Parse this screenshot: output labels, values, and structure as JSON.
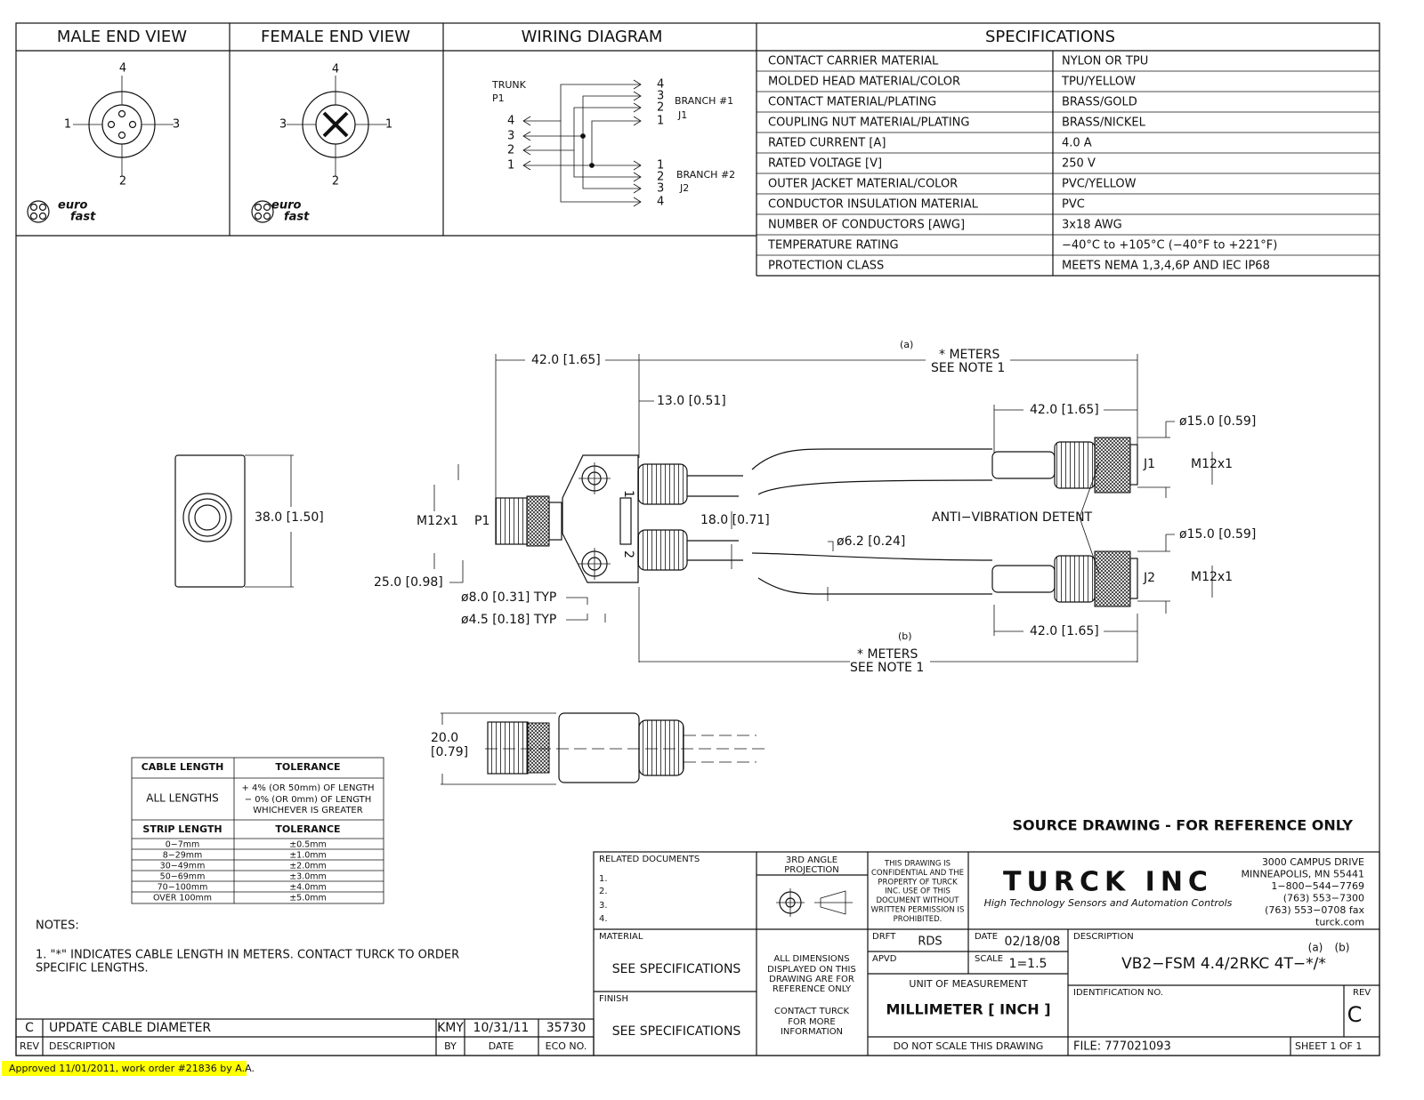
{
  "headers": {
    "male": "MALE END VIEW",
    "female": "FEMALE END VIEW",
    "wiring": "WIRING DIAGRAM",
    "specs": "SPECIFICATIONS"
  },
  "male_view": {
    "pins": [
      "4",
      "1",
      "3",
      "2"
    ],
    "logo": [
      "euro",
      "fast"
    ]
  },
  "female_view": {
    "pins": [
      "4",
      "3",
      "1",
      "2"
    ],
    "logo": [
      "euro",
      "fast"
    ]
  },
  "wiring": {
    "trunk": "TRUNK",
    "trunk_id": "P1",
    "trunk_pins": [
      "4",
      "3",
      "2",
      "1"
    ],
    "branch1": {
      "label": "BRANCH #1",
      "id": "J1",
      "pins": [
        "4",
        "3",
        "2",
        "1"
      ]
    },
    "branch2": {
      "label": "BRANCH #2",
      "id": "J2",
      "pins": [
        "1",
        "2",
        "3",
        "4"
      ]
    }
  },
  "specifications": [
    [
      "CONTACT CARRIER MATERIAL",
      "NYLON OR TPU"
    ],
    [
      "MOLDED HEAD MATERIAL/COLOR",
      "TPU/YELLOW"
    ],
    [
      "CONTACT MATERIAL/PLATING",
      "BRASS/GOLD"
    ],
    [
      "COUPLING NUT MATERIAL/PLATING",
      "BRASS/NICKEL"
    ],
    [
      "RATED CURRENT [A]",
      "4.0 A"
    ],
    [
      "RATED VOLTAGE [V]",
      "250 V"
    ],
    [
      "OUTER JACKET MATERIAL/COLOR",
      "PVC/YELLOW"
    ],
    [
      "CONDUCTOR INSULATION MATERIAL",
      "PVC"
    ],
    [
      "NUMBER OF CONDUCTORS [AWG]",
      "3x18 AWG"
    ],
    [
      "TEMPERATURE RATING",
      "−40°C to +105°C (−40°F to +221°F)"
    ],
    [
      "PROTECTION CLASS",
      "MEETS NEMA 1,3,4,6P AND IEC IP68"
    ]
  ],
  "drawing": {
    "labels": [
      "42.0 [1.65]",
      "(a)",
      "* METERS",
      "SEE NOTE 1",
      "13.0 [0.51]",
      "42.0 [1.65]",
      "ø15.0 [0.59]",
      "J1",
      "M12x1",
      "38.0 [1.50]",
      "M12x1",
      "P1",
      "18.0 [0.71]",
      "ANTI−VIBRATION DETENT",
      "ø15.0 [0.59]",
      "ø6.2 [0.24]",
      "J2",
      "M12x1",
      "25.0 [0.98]",
      "ø8.0 [0.31] TYP",
      "ø4.5 [0.18] TYP",
      "42.0 [1.65]",
      "(b)",
      "* METERS",
      "SEE NOTE 1",
      "20.0",
      "[0.79]",
      "1",
      "2"
    ]
  },
  "tolerance_table": {
    "header": [
      "CABLE LENGTH",
      "TOLERANCE"
    ],
    "all_lengths": "ALL LENGTHS",
    "all_tolerance": [
      "+ 4% (OR 50mm) OF LENGTH",
      "− 0% (OR 0mm) OF LENGTH",
      "WHICHEVER IS GREATER"
    ],
    "strip_header": [
      "STRIP LENGTH",
      "TOLERANCE"
    ],
    "strip_rows": [
      [
        "0−7mm",
        "±0.5mm"
      ],
      [
        "8−29mm",
        "±1.0mm"
      ],
      [
        "30−49mm",
        "±2.0mm"
      ],
      [
        "50−69mm",
        "±3.0mm"
      ],
      [
        "70−100mm",
        "±4.0mm"
      ],
      [
        "OVER 100mm",
        "±5.0mm"
      ]
    ]
  },
  "source_note": "SOURCE DRAWING - FOR REFERENCE ONLY",
  "notes": {
    "title": "NOTES:",
    "lines": [
      "1. \"*\" INDICATES CABLE LENGTH IN METERS. CONTACT TURCK TO ORDER",
      "SPECIFIC LENGTHS."
    ]
  },
  "revision": {
    "row": [
      "C",
      "UPDATE CABLE DIAMETER",
      "KMY",
      "10/31/11",
      "35730"
    ],
    "header": [
      "REV",
      "DESCRIPTION",
      "BY",
      "DATE",
      "ECO NO."
    ]
  },
  "title_block": {
    "related_documents": "RELATED DOCUMENTS",
    "related_items": [
      "1.",
      "2.",
      "3.",
      "4."
    ],
    "material_label": "MATERIAL",
    "material": "SEE SPECIFICATIONS",
    "finish_label": "FINISH",
    "finish": "SEE SPECIFICATIONS",
    "projection": [
      "3RD ANGLE",
      "PROJECTION"
    ],
    "dimensions_note": [
      "ALL DIMENSIONS",
      "DISPLAYED ON THIS",
      "DRAWING ARE FOR",
      "REFERENCE ONLY"
    ],
    "contact_note": [
      "CONTACT TURCK",
      "FOR MORE",
      "INFORMATION"
    ],
    "confidential": [
      "THIS DRAWING IS",
      "CONFIDENTIAL AND THE",
      "PROPERTY OF TURCK",
      "INC. USE OF THIS",
      "DOCUMENT WITHOUT",
      "WRITTEN PERMISSION IS",
      "PROHIBITED."
    ],
    "company": "TURCK INC",
    "tagline": "High Technology Sensors and Automation Controls",
    "address": [
      "3000 CAMPUS DRIVE",
      "MINNEAPOLIS, MN 55441",
      "1−800−544−7769",
      "(763) 553−7300",
      "(763) 553−0708 fax",
      "turck.com"
    ],
    "drft_label": "DRFT",
    "drft": "RDS",
    "date_label": "DATE",
    "date": "02/18/08",
    "apvd_label": "APVD",
    "scale_label": "SCALE",
    "scale": "1=1.5",
    "unit_label": "UNIT OF MEASUREMENT",
    "unit": "MILLIMETER [ INCH ]",
    "no_scale": "DO NOT SCALE THIS DRAWING",
    "description_label": "DESCRIPTION",
    "description_marks": [
      "(a)",
      "(b)"
    ],
    "description": "VB2−FSM 4.4/2RKC 4T−*/*",
    "identification_label": "IDENTIFICATION NO.",
    "rev_label": "REV",
    "rev": "C",
    "file": "FILE: 777021093",
    "sheet": "SHEET 1 OF 1"
  },
  "approval": "Approved 11/01/2011, work order #21836 by A.A."
}
